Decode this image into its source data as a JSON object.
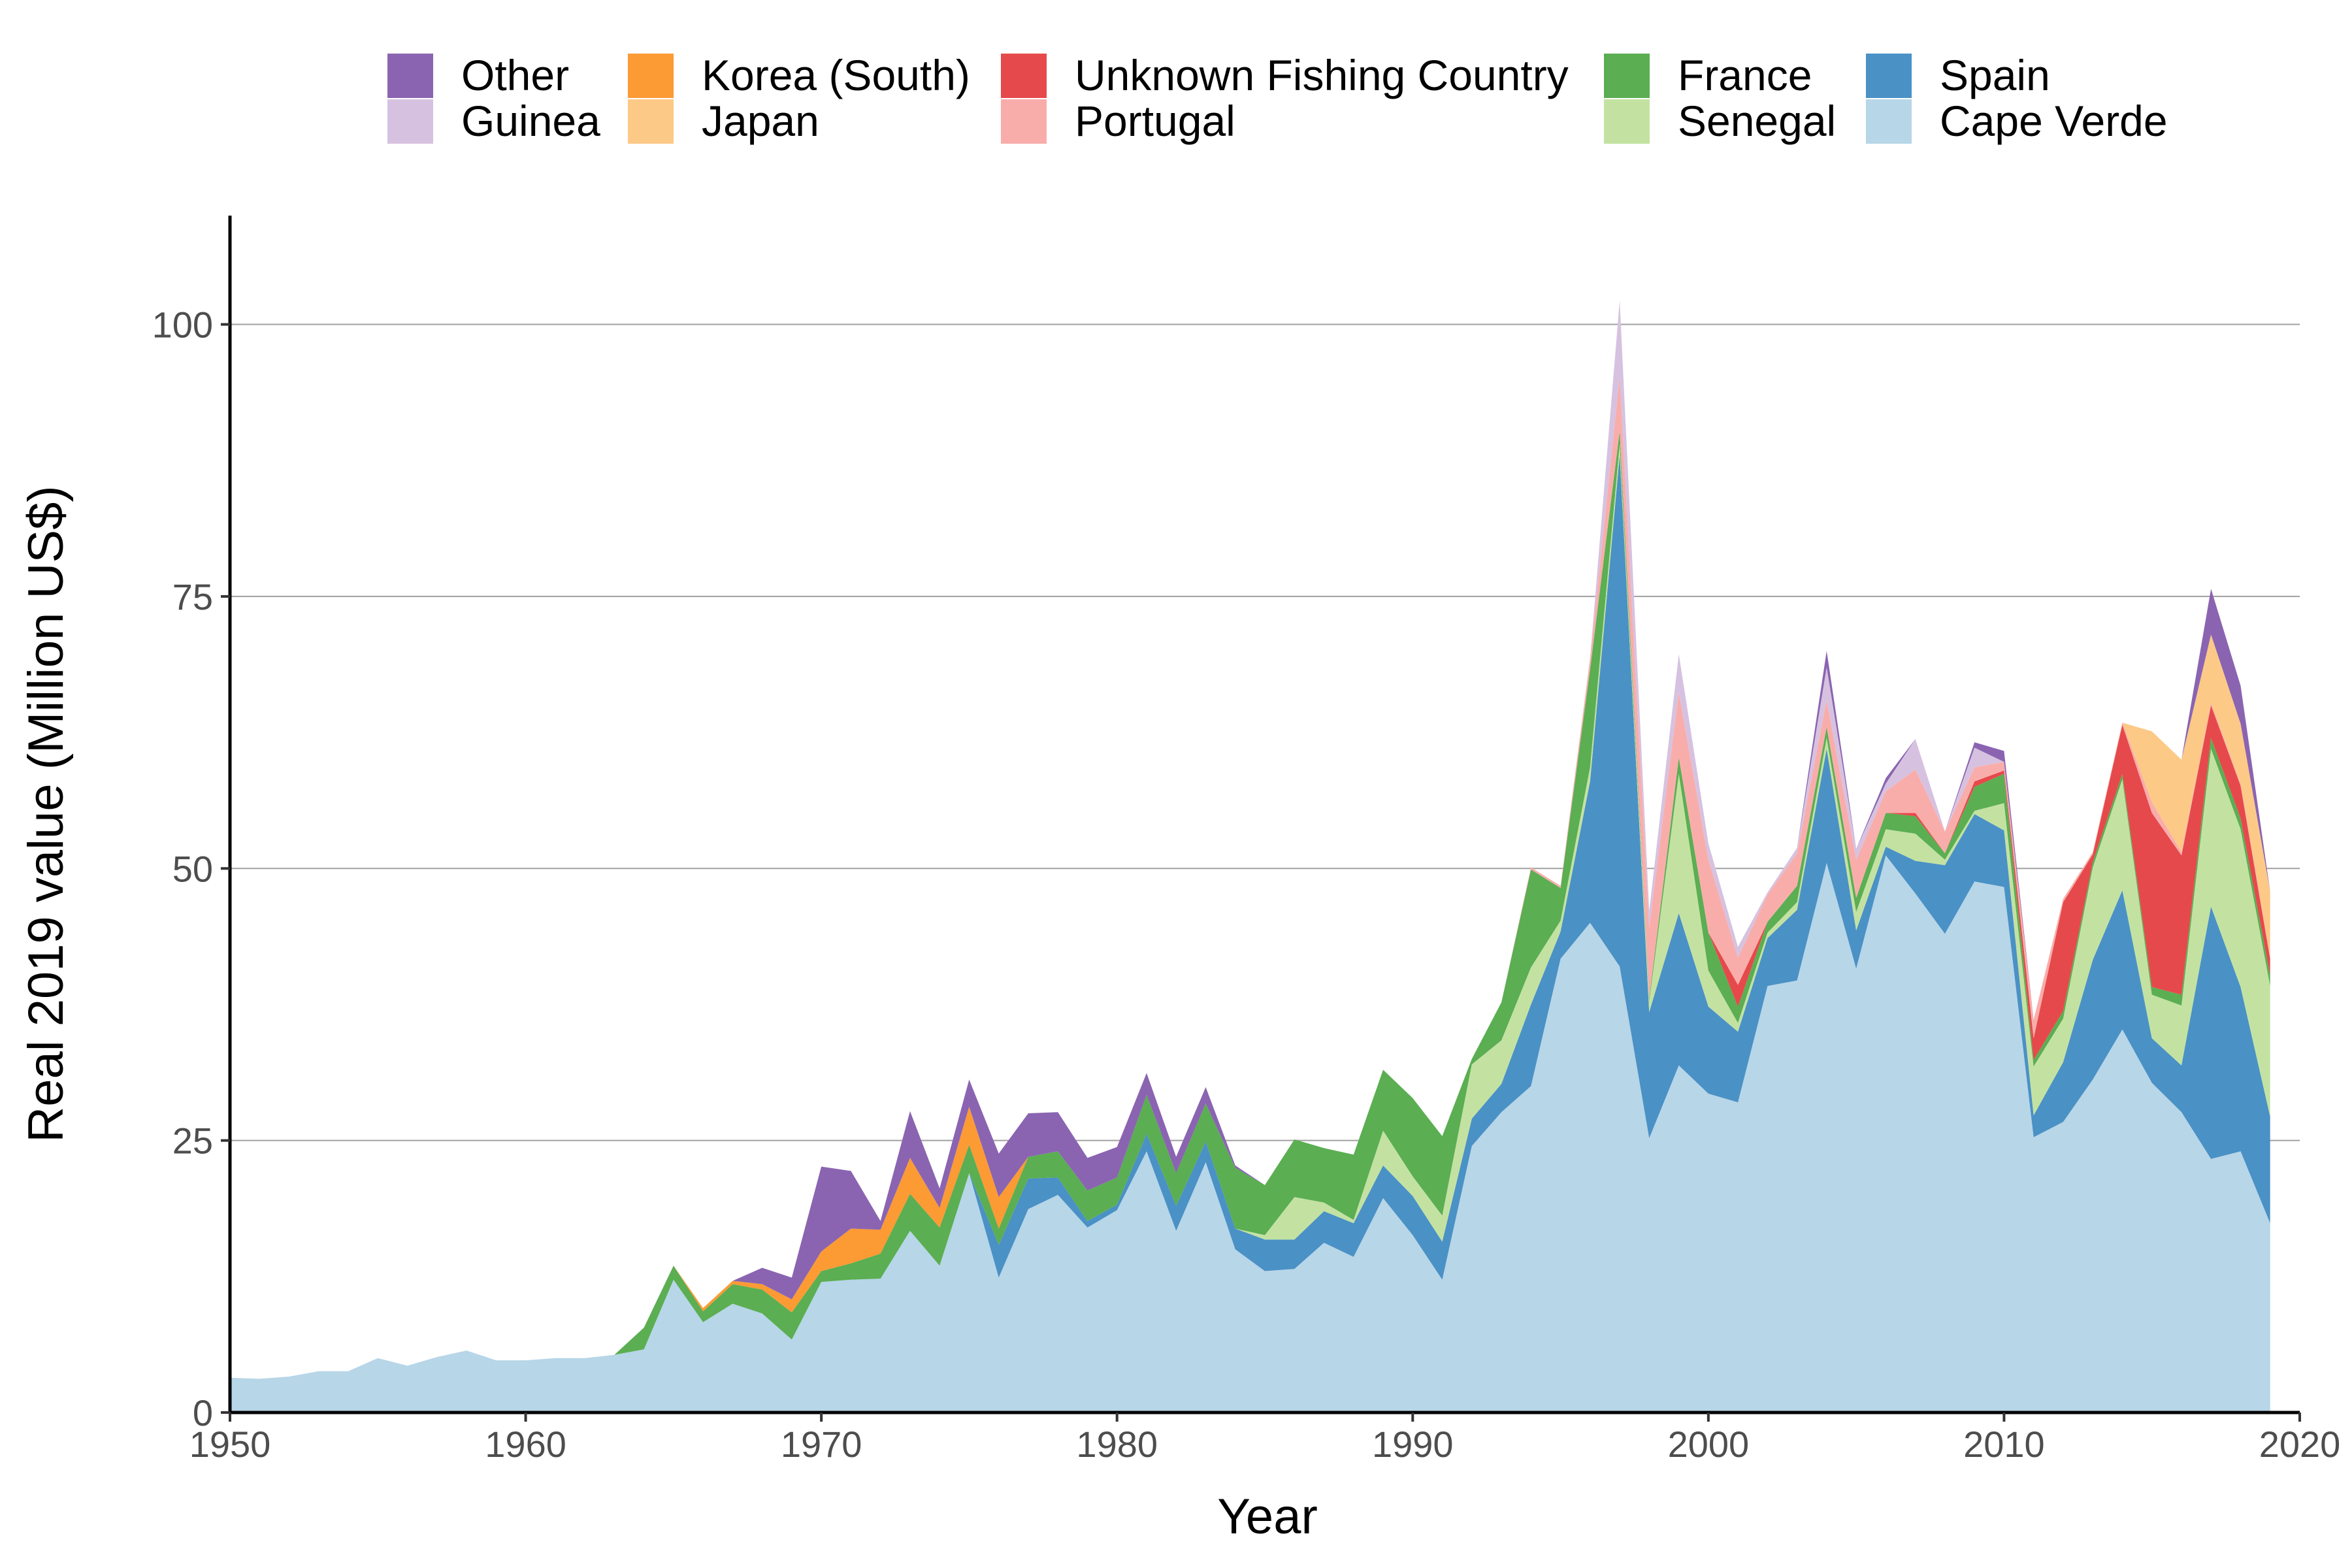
{
  "chart_data": {
    "type": "area",
    "stacked": true,
    "xlabel": "Year",
    "ylabel": "Real 2019 value (Million US$)",
    "xlim": [
      1950,
      2020
    ],
    "ylim": [
      0,
      110
    ],
    "xticks": [
      1950,
      1960,
      1970,
      1980,
      1990,
      2000,
      2010,
      2020
    ],
    "yticks": [
      0,
      25,
      50,
      75,
      100
    ],
    "grid": "horizontal-major",
    "legend_position": "top",
    "x": [
      1950,
      1951,
      1952,
      1953,
      1954,
      1955,
      1956,
      1957,
      1958,
      1959,
      1960,
      1961,
      1962,
      1963,
      1964,
      1965,
      1966,
      1967,
      1968,
      1969,
      1970,
      1971,
      1972,
      1973,
      1974,
      1975,
      1976,
      1977,
      1978,
      1979,
      1980,
      1981,
      1982,
      1983,
      1984,
      1985,
      1986,
      1987,
      1988,
      1989,
      1990,
      1991,
      1992,
      1993,
      1994,
      1995,
      1996,
      1997,
      1998,
      1999,
      2000,
      2001,
      2002,
      2003,
      2004,
      2005,
      2006,
      2007,
      2008,
      2009,
      2010,
      2011,
      2012,
      2013,
      2014,
      2015,
      2016,
      2017,
      2018,
      2019
    ],
    "series": [
      {
        "name": "Cape Verde",
        "color": "#b7d6e8",
        "values": [
          3.2,
          3.1,
          3.3,
          3.8,
          3.8,
          5.0,
          4.3,
          5.1,
          5.7,
          4.8,
          4.8,
          5.0,
          5.0,
          5.3,
          5.8,
          12.2,
          8.3,
          10.0,
          9.1,
          6.7,
          12.0,
          12.2,
          12.3,
          16.7,
          13.5,
          22.0,
          12.4,
          18.7,
          20.0,
          17.0,
          18.6,
          24.0,
          16.7,
          23.0,
          15.0,
          13.0,
          13.2,
          15.6,
          14.3,
          19.7,
          16.3,
          12.2,
          24.5,
          27.6,
          30.0,
          41.7,
          45.0,
          41.0,
          25.2,
          31.9,
          29.3,
          28.5,
          39.2,
          39.7,
          50.5,
          40.8,
          51.2,
          47.7,
          44.0,
          48.8,
          48.3,
          25.3,
          26.7,
          30.6,
          35.2,
          30.3,
          27.6,
          23.3,
          24.0,
          17.4
        ]
      },
      {
        "name": "Spain",
        "color": "#4a91c5",
        "values": [
          0,
          0,
          0,
          0,
          0,
          0,
          0,
          0,
          0,
          0,
          0,
          0,
          0,
          0,
          0,
          0,
          0,
          0,
          0,
          0,
          0,
          0,
          0,
          0,
          0,
          0,
          3.0,
          2.8,
          1.6,
          0.6,
          0.5,
          1.6,
          2.3,
          1.9,
          1.9,
          2.9,
          2.7,
          2.9,
          3.1,
          3.0,
          3.6,
          3.5,
          2.5,
          2.6,
          7.5,
          2.5,
          13.0,
          47.0,
          11.6,
          14.0,
          8.0,
          6.5,
          4.4,
          6.5,
          10.5,
          3.5,
          0.8,
          3.0,
          6.3,
          6.2,
          5.2,
          2.0,
          5.5,
          11.0,
          12.8,
          4.1,
          4.3,
          23.2,
          15.1,
          9.8
        ]
      },
      {
        "name": "Senegal",
        "color": "#c3e2a2",
        "values": [
          0,
          0,
          0,
          0,
          0,
          0,
          0,
          0,
          0,
          0,
          0,
          0,
          0,
          0,
          0,
          0,
          0,
          0,
          0,
          0,
          0,
          0,
          0,
          0,
          0,
          0,
          0,
          0,
          0,
          0,
          0,
          0,
          0,
          0,
          0,
          0.4,
          3.9,
          0.8,
          0.3,
          3.2,
          1.8,
          2.4,
          5.0,
          4.0,
          3.4,
          1.0,
          1.3,
          1.0,
          1.0,
          12.8,
          3.3,
          0.8,
          0.5,
          0.7,
          1.0,
          1.7,
          1.6,
          2.5,
          0.5,
          0.3,
          2.5,
          4.5,
          4.0,
          8.5,
          10.2,
          4.0,
          5.5,
          14.5,
          14.5,
          12.0
        ]
      },
      {
        "name": "France",
        "color": "#5bae52",
        "values": [
          0,
          0,
          0,
          0,
          0,
          0,
          0,
          0,
          0,
          0,
          0,
          0,
          0,
          0,
          2.0,
          1.3,
          1.0,
          1.8,
          2.2,
          2.5,
          1.0,
          1.5,
          2.3,
          3.4,
          3.5,
          2.6,
          1.5,
          2.0,
          2.4,
          2.8,
          2.5,
          3.6,
          3.0,
          3.5,
          5.6,
          4.6,
          5.3,
          5.0,
          6.0,
          5.6,
          7.2,
          7.3,
          0.5,
          3.5,
          9.0,
          3.0,
          9.0,
          1.2,
          0.3,
          1.5,
          3.5,
          1.5,
          1.0,
          1.5,
          1.0,
          1.3,
          1.5,
          1.6,
          0.6,
          2.2,
          2.7,
          0.6,
          0.7,
          0.5,
          0.5,
          0.7,
          1.0,
          1.0,
          1.0,
          1.0
        ]
      },
      {
        "name": "Unknown Fishing Country",
        "color": "#e6494b",
        "values": [
          0,
          0,
          0,
          0,
          0,
          0,
          0,
          0,
          0,
          0,
          0,
          0,
          0,
          0,
          0,
          0,
          0,
          0,
          0,
          0,
          0,
          0,
          0,
          0,
          0,
          0,
          0,
          0,
          0,
          0,
          0,
          0,
          0,
          0,
          0,
          0,
          0,
          0,
          0,
          0,
          0,
          0,
          0,
          0,
          0,
          0,
          0,
          0,
          0,
          0,
          0,
          2.0,
          0,
          0,
          0,
          0,
          0,
          0.3,
          0,
          0.5,
          0.3,
          2.0,
          10.0,
          0.7,
          4.5,
          16.0,
          12.8,
          3.0,
          3.0,
          1.5
        ]
      },
      {
        "name": "Portugal",
        "color": "#f9adab",
        "values": [
          0,
          0,
          0,
          0,
          0,
          0,
          0,
          0,
          0,
          0,
          0,
          0,
          0,
          0,
          0,
          0,
          0,
          0,
          0,
          0,
          0,
          0,
          0,
          0,
          0,
          0,
          0,
          0,
          0,
          0,
          0,
          0,
          0,
          0,
          0,
          0,
          0,
          0,
          0,
          0,
          0,
          0,
          0,
          0,
          0.2,
          0.2,
          1.0,
          5.0,
          6.5,
          6.0,
          6.7,
          2.5,
          2.5,
          3.0,
          2.5,
          3.5,
          2.0,
          4.0,
          2.0,
          1.3,
          0.8,
          1.7,
          0.3,
          0.2,
          0.2,
          1.0,
          0.3,
          0.2,
          0.2,
          0.2
        ]
      },
      {
        "name": "Japan",
        "color": "#fdc987",
        "values": [
          0,
          0,
          0,
          0,
          0,
          0,
          0,
          0,
          0,
          0,
          0,
          0,
          0,
          0,
          0,
          0,
          0,
          0,
          0,
          0,
          0,
          0,
          0,
          0,
          0,
          0,
          0,
          0,
          0,
          0,
          0,
          0,
          0,
          0,
          0,
          0,
          0,
          0,
          0,
          0,
          0,
          0,
          0,
          0,
          0,
          0,
          0,
          0,
          0,
          0,
          0,
          0,
          0,
          0,
          0,
          0,
          0,
          0,
          0,
          0,
          0,
          0,
          0,
          0,
          0,
          6.5,
          8.5,
          6.3,
          5.5,
          6.0
        ]
      },
      {
        "name": "Korea (South)",
        "color": "#fc9a34",
        "values": [
          0,
          0,
          0,
          0,
          0,
          0,
          0,
          0,
          0,
          0,
          0,
          0,
          0,
          0,
          0,
          0,
          0.3,
          0.3,
          0.5,
          1.2,
          1.8,
          3.2,
          2.2,
          3.3,
          1.8,
          3.5,
          2.9,
          0,
          0,
          0,
          0,
          0,
          0,
          0,
          0,
          0,
          0,
          0,
          0,
          0,
          0,
          0,
          0,
          0,
          0,
          0,
          0,
          0,
          0,
          0,
          0,
          0,
          0,
          0,
          0,
          0,
          0,
          0,
          0,
          0,
          0,
          0,
          0,
          0,
          0,
          0,
          0,
          0,
          0,
          0
        ]
      },
      {
        "name": "Guinea",
        "color": "#d6c2e0",
        "values": [
          0,
          0,
          0,
          0,
          0,
          0,
          0,
          0,
          0,
          0,
          0,
          0,
          0,
          0,
          0,
          0,
          0,
          0,
          0,
          0,
          0,
          0,
          0,
          0,
          0,
          0,
          0,
          0,
          0,
          0,
          0,
          0,
          0,
          0,
          0,
          0,
          0,
          0,
          0,
          0,
          0,
          0,
          0,
          0,
          0,
          0,
          0,
          7.0,
          1.5,
          3.5,
          1.5,
          1.0,
          0.2,
          0.5,
          3.0,
          1.0,
          0.7,
          2.8,
          0,
          1.8,
          0,
          0,
          0,
          0,
          0,
          0,
          0,
          0,
          0,
          0
        ]
      },
      {
        "name": "Other",
        "color": "#8a64b1",
        "values": [
          0,
          0,
          0,
          0,
          0,
          0,
          0,
          0,
          0,
          0,
          0,
          0,
          0,
          0,
          0,
          0,
          0,
          0,
          1.5,
          2.0,
          7.8,
          5.3,
          0.8,
          4.3,
          1.8,
          2.5,
          4.0,
          4.0,
          3.6,
          3.0,
          2.8,
          2.0,
          1.5,
          1.5,
          0.2,
          0,
          0,
          0,
          0,
          0,
          0,
          0,
          0,
          0,
          0,
          0,
          0,
          0,
          0,
          0,
          0,
          0,
          0,
          0,
          1.5,
          0,
          0.5,
          0,
          0,
          0.5,
          1.0,
          0,
          0,
          0,
          0,
          0,
          0,
          4.2,
          3.5,
          0
        ]
      }
    ],
    "legend": [
      [
        "Other",
        "Guinea"
      ],
      [
        "Korea (South)",
        "Japan"
      ],
      [
        "Unknown Fishing Country",
        "Portugal"
      ],
      [
        "France",
        "Senegal"
      ],
      [
        "Spain",
        "Cape Verde"
      ]
    ]
  }
}
